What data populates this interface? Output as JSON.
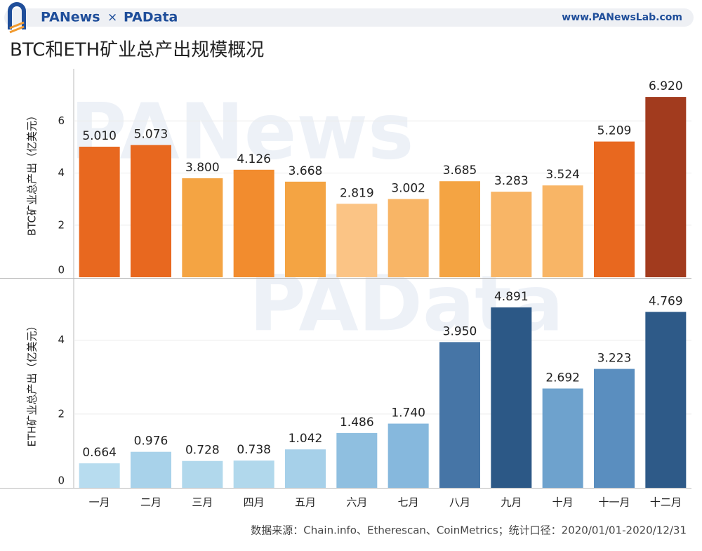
{
  "header": {
    "brand": "PANews",
    "separator": "×",
    "brand2": "PAData",
    "url": "www.PANewsLab.com"
  },
  "title": "BTC和ETH矿业总产出规模概况",
  "watermarks": [
    "PANews",
    "PAData"
  ],
  "source": "数据来源：Chain.info、Etherescan、CoinMetrics；统计口径：2020/01/01-2020/12/31",
  "chart_data": [
    {
      "type": "bar",
      "y_label": "BTC矿业总产出（亿美元）",
      "values": [
        5.01,
        5.073,
        3.8,
        4.126,
        3.668,
        2.819,
        3.002,
        3.685,
        3.283,
        3.524,
        5.209,
        6.92
      ],
      "value_labels": [
        "5.010",
        "5.073",
        "3.800",
        "4.126",
        "3.668",
        "2.819",
        "3.002",
        "3.685",
        "3.283",
        "3.524",
        "5.209",
        "6.920"
      ],
      "colors": [
        "#e8681f",
        "#e8681f",
        "#f4a443",
        "#f28c2e",
        "#f4a443",
        "#fbc485",
        "#f8b566",
        "#f4a443",
        "#f8b566",
        "#f8b566",
        "#e8681f",
        "#a23b1e"
      ],
      "ylim": [
        0,
        8
      ],
      "yticks": [
        0,
        2,
        4,
        6
      ],
      "grid": true
    },
    {
      "type": "bar",
      "y_label": "ETH矿业总产出（亿美元）",
      "categories": [
        "一月",
        "二月",
        "三月",
        "四月",
        "五月",
        "六月",
        "七月",
        "八月",
        "九月",
        "十月",
        "十一月",
        "十二月"
      ],
      "values": [
        0.664,
        0.976,
        0.728,
        0.738,
        1.042,
        1.486,
        1.74,
        3.95,
        4.891,
        2.692,
        3.223,
        4.769
      ],
      "value_labels": [
        "0.664",
        "0.976",
        "0.728",
        "0.738",
        "1.042",
        "1.486",
        "1.740",
        "3.950",
        "4.891",
        "2.692",
        "3.223",
        "4.769"
      ],
      "colors": [
        "#b7dcef",
        "#a8d2ea",
        "#b1d8ec",
        "#b1d8ec",
        "#a6d0e9",
        "#8fbfe0",
        "#86b8dd",
        "#4675a6",
        "#2c5886",
        "#6ea2cd",
        "#5a8ebf",
        "#2e5a88"
      ],
      "ylim": [
        0,
        5.65
      ],
      "yticks": [
        0,
        2,
        4
      ],
      "grid": true
    }
  ]
}
